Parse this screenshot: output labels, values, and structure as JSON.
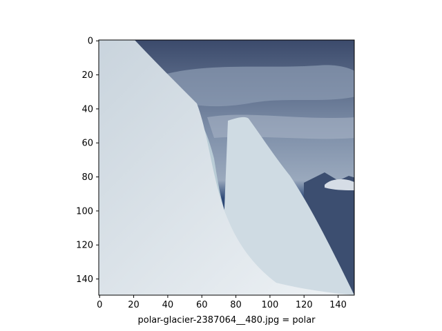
{
  "chart_data": {
    "type": "image",
    "title": "",
    "xlabel": "polar-glacier-2387064__480.jpg = polar",
    "ylabel": "",
    "image_shape": [
      150,
      150
    ],
    "xlim": [
      -0.5,
      149.5
    ],
    "ylim": [
      149.5,
      -0.5
    ],
    "xticks": [
      0,
      20,
      40,
      60,
      80,
      100,
      120,
      140
    ],
    "yticks": [
      0,
      20,
      40,
      60,
      80,
      100,
      120,
      140
    ],
    "image_content": {
      "subject": "snow-covered glacier ridge with crevasse against cloudy sky",
      "snow_color": "#dfe6ec",
      "crevasse_color": "#b9ccd6",
      "sky_top_color": "#3b4a6b",
      "sky_mid_color": "#7d8ea8",
      "horizon_color": "#2f4a78",
      "mountain_color": "#3c4e70"
    }
  }
}
